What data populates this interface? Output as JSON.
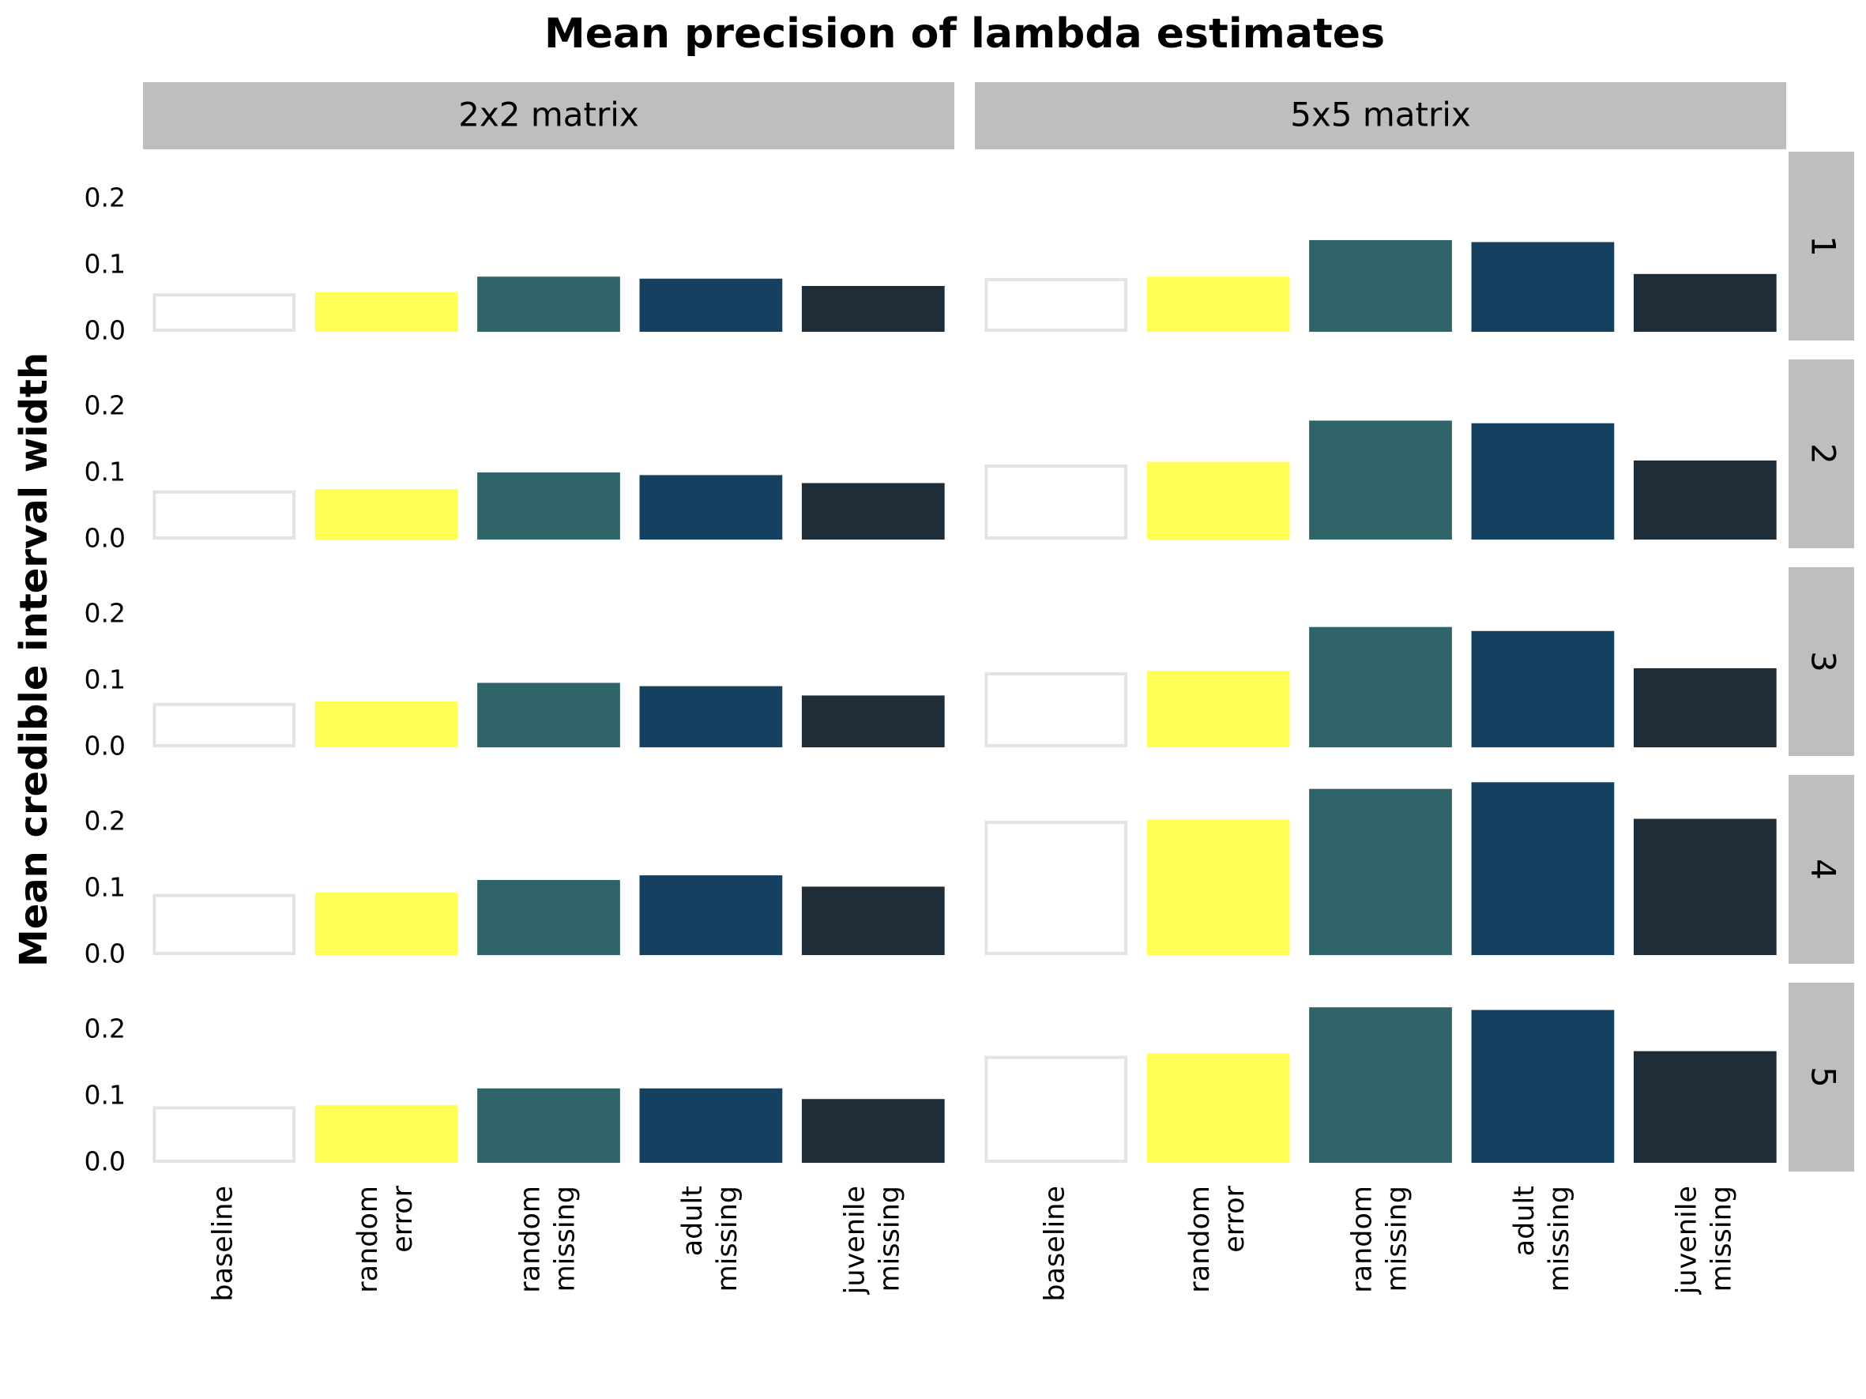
{
  "chart_data": {
    "type": "bar",
    "title": "Mean precision of lambda estimates",
    "ylabel": "Mean credible interval width",
    "columns": [
      "2x2 matrix",
      "5x5 matrix"
    ],
    "rows": [
      "1",
      "2",
      "3",
      "4",
      "5"
    ],
    "categories": [
      [
        "baseline"
      ],
      [
        "random",
        "error"
      ],
      [
        "random",
        "missing"
      ],
      [
        "adult",
        "missing"
      ],
      [
        "juvenile",
        "missing"
      ]
    ],
    "colors": [
      "#ffffff",
      "#ffff55",
      "#2f6469",
      "#15405f",
      "#1f2d38"
    ],
    "ylim": [
      -0.013,
      0.271
    ],
    "yticks": [
      {
        "value": 0,
        "label": "0.0"
      },
      0.1,
      0.2
    ],
    "grid": false,
    "panels": [
      [
        [
          0.058,
          0.06,
          0.083,
          0.08,
          0.069
        ],
        [
          0.081,
          0.083,
          0.138,
          0.135,
          0.087
        ]
      ],
      [
        [
          0.074,
          0.076,
          0.101,
          0.097,
          0.085
        ],
        [
          0.113,
          0.117,
          0.179,
          0.175,
          0.119
        ]
      ],
      [
        [
          0.067,
          0.069,
          0.097,
          0.092,
          0.078
        ],
        [
          0.113,
          0.115,
          0.181,
          0.175,
          0.119
        ]
      ],
      [
        [
          0.092,
          0.094,
          0.113,
          0.12,
          0.103
        ],
        [
          0.202,
          0.204,
          0.25,
          0.26,
          0.205
        ]
      ],
      [
        [
          0.085,
          0.087,
          0.112,
          0.112,
          0.096
        ],
        [
          0.161,
          0.165,
          0.234,
          0.23,
          0.168
        ]
      ]
    ]
  }
}
